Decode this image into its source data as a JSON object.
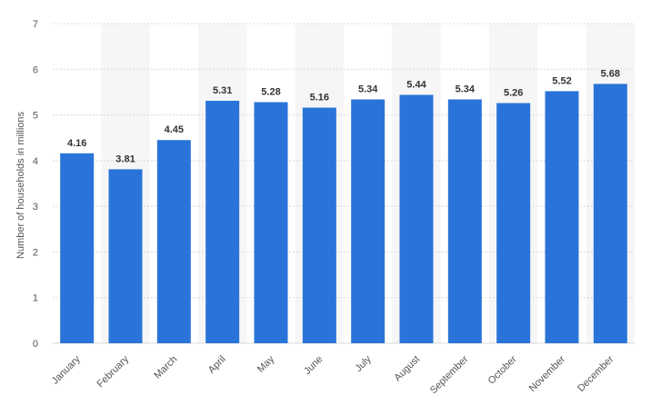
{
  "chart_data": {
    "type": "bar",
    "categories": [
      "January",
      "February",
      "March",
      "April",
      "May",
      "June",
      "July",
      "August",
      "September",
      "October",
      "November",
      "December"
    ],
    "values": [
      4.16,
      3.81,
      4.45,
      5.31,
      5.28,
      5.16,
      5.34,
      5.44,
      5.34,
      5.26,
      5.52,
      5.68
    ],
    "value_labels": [
      "4.16",
      "3.81",
      "4.45",
      "5.31",
      "5.28",
      "5.16",
      "5.34",
      "5.44",
      "5.34",
      "5.26",
      "5.52",
      "5.68"
    ],
    "title": "",
    "xlabel": "",
    "ylabel": "Number of households in millions",
    "ylim": [
      0,
      7
    ],
    "yticks": [
      "0",
      "1",
      "2",
      "3",
      "4",
      "5",
      "6",
      "7"
    ],
    "grid": true,
    "colors": {
      "bar": "#2a74d9",
      "band": "#f6f6f6",
      "grid": "#d8d8d8"
    }
  }
}
